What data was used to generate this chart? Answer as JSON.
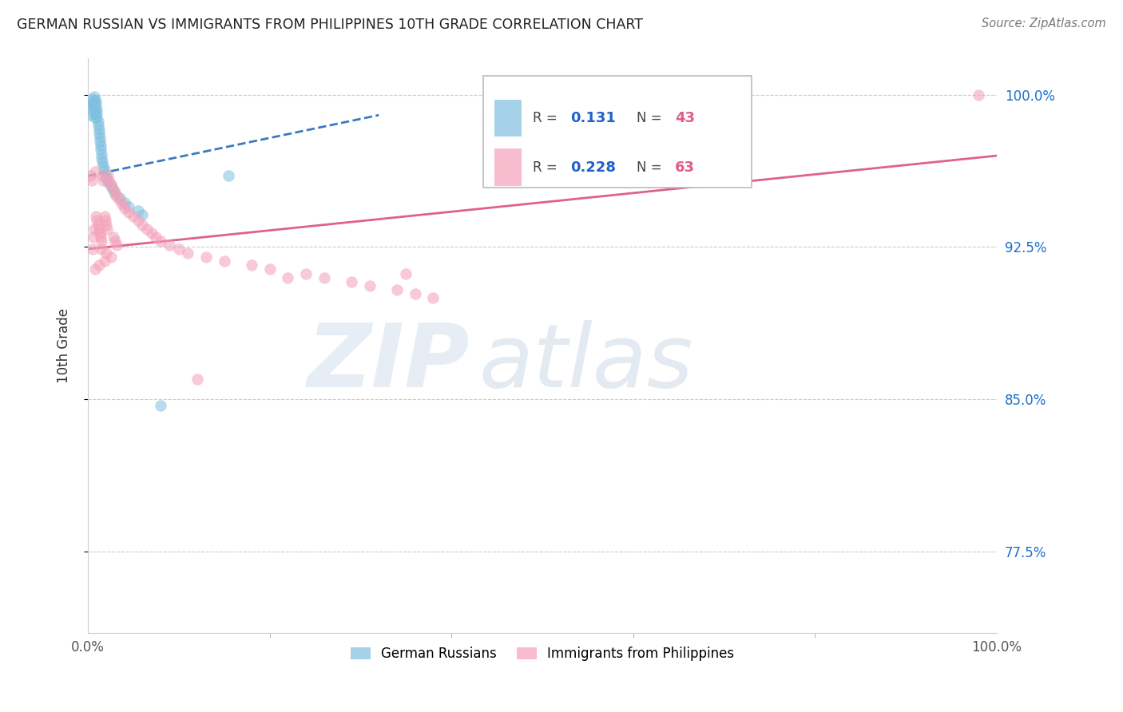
{
  "title": "GERMAN RUSSIAN VS IMMIGRANTS FROM PHILIPPINES 10TH GRADE CORRELATION CHART",
  "source": "Source: ZipAtlas.com",
  "ylabel": "10th Grade",
  "blue_label": "German Russians",
  "pink_label": "Immigrants from Philippines",
  "blue_R": 0.131,
  "blue_N": 43,
  "pink_R": 0.228,
  "pink_N": 63,
  "xlim": [
    0.0,
    1.0
  ],
  "ylim": [
    0.735,
    1.018
  ],
  "yticks": [
    0.775,
    0.85,
    0.925,
    1.0
  ],
  "ytick_labels": [
    "77.5%",
    "85.0%",
    "92.5%",
    "100.0%"
  ],
  "xtick_labels": [
    "0.0%",
    "100.0%"
  ],
  "blue_color": "#7fbfdf",
  "pink_color": "#f4a0b8",
  "blue_line_color": "#3a7bbf",
  "pink_line_color": "#e06090",
  "legend_R_color": "#2060cc",
  "legend_N_color": "#e05c8a",
  "blue_x": [
    0.003,
    0.004,
    0.005,
    0.005,
    0.006,
    0.006,
    0.007,
    0.007,
    0.007,
    0.008,
    0.008,
    0.008,
    0.009,
    0.009,
    0.01,
    0.01,
    0.01,
    0.011,
    0.011,
    0.012,
    0.012,
    0.013,
    0.013,
    0.014,
    0.014,
    0.015,
    0.015,
    0.016,
    0.017,
    0.018,
    0.019,
    0.02,
    0.022,
    0.025,
    0.028,
    0.03,
    0.035,
    0.04,
    0.045,
    0.055,
    0.06,
    0.08,
    0.155
  ],
  "blue_y": [
    0.99,
    0.995,
    0.998,
    0.996,
    0.994,
    0.992,
    0.999,
    0.997,
    0.995,
    0.993,
    0.991,
    0.989,
    0.997,
    0.995,
    0.993,
    0.991,
    0.989,
    0.987,
    0.985,
    0.983,
    0.981,
    0.979,
    0.977,
    0.975,
    0.973,
    0.971,
    0.969,
    0.967,
    0.965,
    0.963,
    0.961,
    0.959,
    0.957,
    0.955,
    0.953,
    0.951,
    0.949,
    0.947,
    0.945,
    0.943,
    0.941,
    0.847,
    0.96
  ],
  "pink_x": [
    0.003,
    0.004,
    0.005,
    0.006,
    0.007,
    0.008,
    0.009,
    0.01,
    0.011,
    0.012,
    0.013,
    0.014,
    0.015,
    0.016,
    0.017,
    0.018,
    0.019,
    0.02,
    0.021,
    0.022,
    0.023,
    0.025,
    0.027,
    0.03,
    0.032,
    0.035,
    0.038,
    0.04,
    0.045,
    0.05,
    0.055,
    0.06,
    0.065,
    0.07,
    0.075,
    0.08,
    0.09,
    0.1,
    0.11,
    0.13,
    0.15,
    0.18,
    0.2,
    0.24,
    0.26,
    0.29,
    0.31,
    0.34,
    0.36,
    0.38,
    0.12,
    0.028,
    0.03,
    0.032,
    0.015,
    0.02,
    0.025,
    0.018,
    0.012,
    0.008,
    0.35,
    0.22,
    0.98
  ],
  "pink_y": [
    0.96,
    0.958,
    0.924,
    0.93,
    0.934,
    0.962,
    0.94,
    0.938,
    0.936,
    0.934,
    0.932,
    0.93,
    0.928,
    0.96,
    0.958,
    0.94,
    0.938,
    0.936,
    0.934,
    0.96,
    0.958,
    0.956,
    0.954,
    0.952,
    0.95,
    0.948,
    0.946,
    0.944,
    0.942,
    0.94,
    0.938,
    0.936,
    0.934,
    0.932,
    0.93,
    0.928,
    0.926,
    0.924,
    0.922,
    0.92,
    0.918,
    0.916,
    0.914,
    0.912,
    0.91,
    0.908,
    0.906,
    0.904,
    0.902,
    0.9,
    0.86,
    0.93,
    0.928,
    0.926,
    0.924,
    0.922,
    0.92,
    0.918,
    0.916,
    0.914,
    0.912,
    0.91,
    1.0
  ],
  "blue_trend_x": [
    0.0,
    0.32
  ],
  "blue_trend_y": [
    0.96,
    0.99
  ],
  "pink_trend_x": [
    0.0,
    1.0
  ],
  "pink_trend_y": [
    0.924,
    0.97
  ]
}
